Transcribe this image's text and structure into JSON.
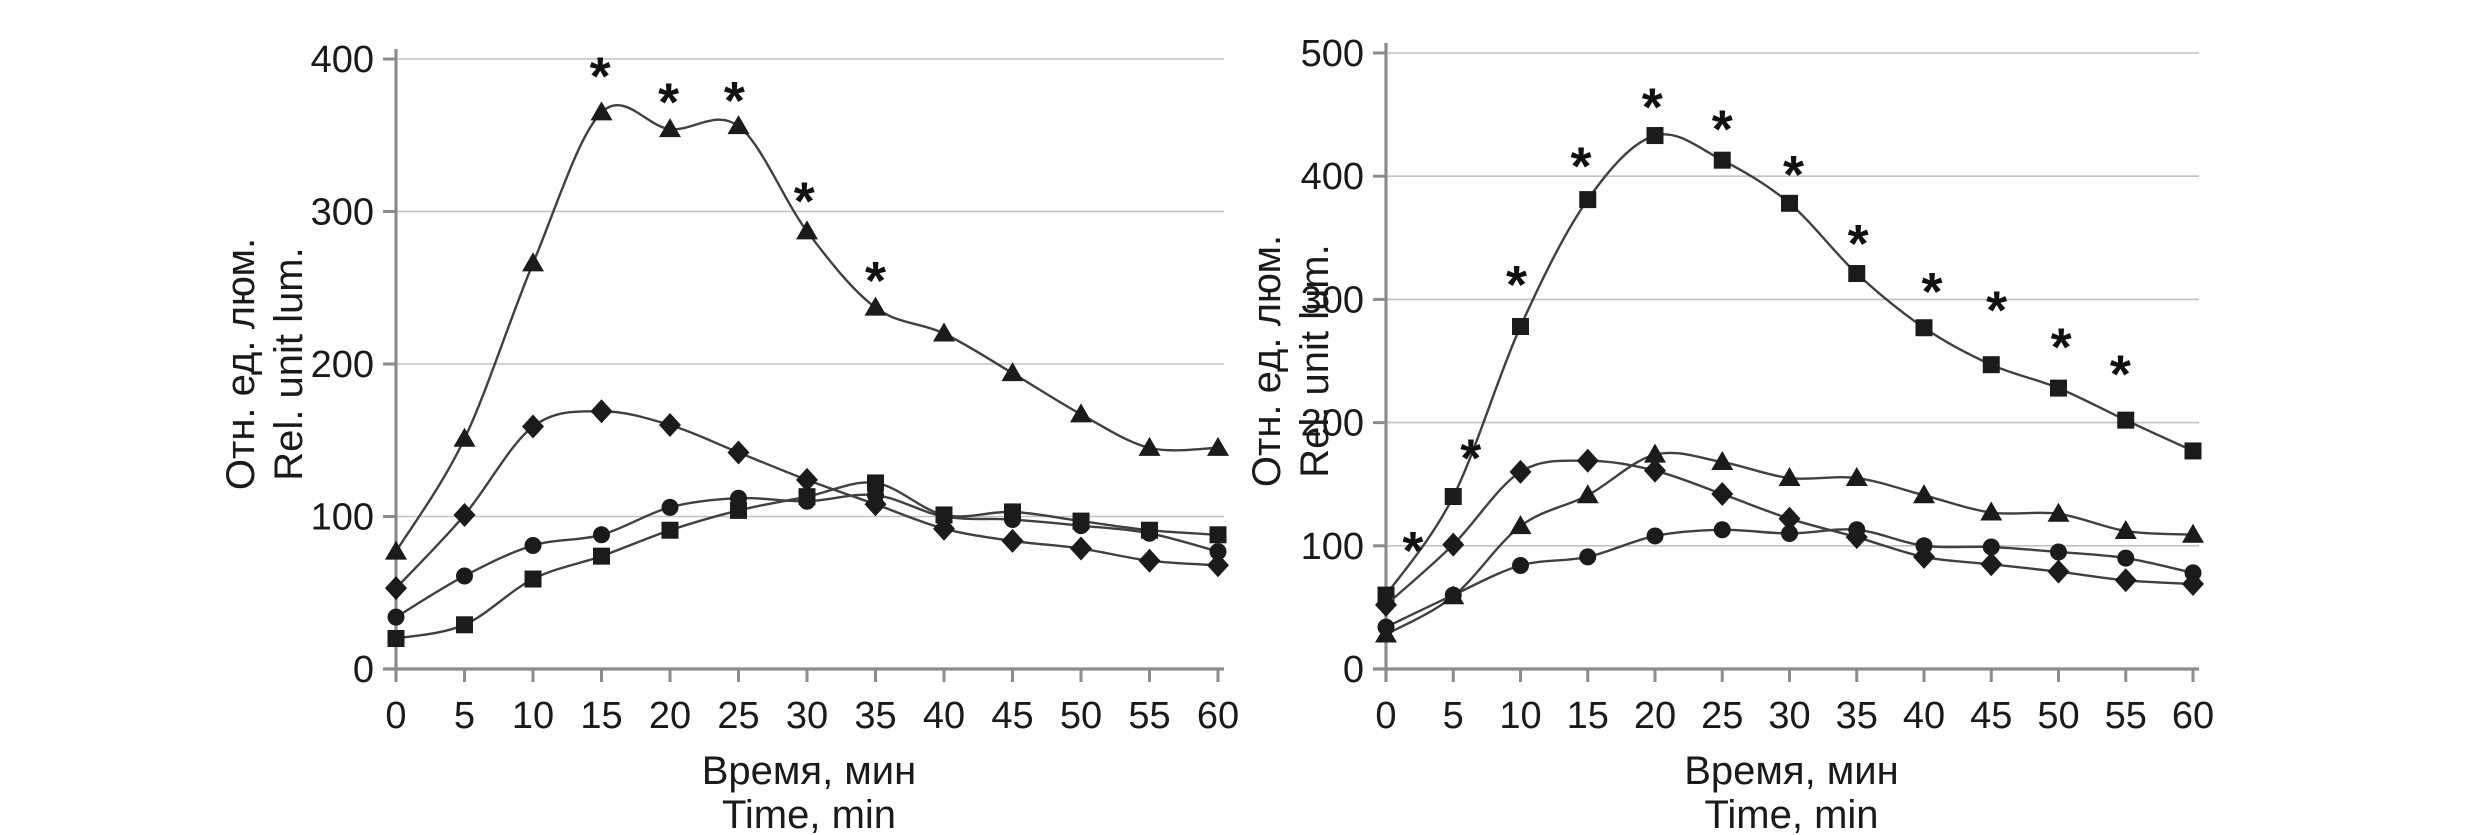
{
  "figure": {
    "background": "#ffffff",
    "text_color": "#1a1a1a",
    "line_color": "#404040",
    "marker_color": "#1b1b1b",
    "grid_color": "#c2c2c2",
    "axis_color": "#8c8c8c",
    "significance_symbol": "*"
  },
  "chart_data": [
    {
      "type": "line",
      "title": "",
      "ylabel_line1": "Отн. ед. люм.",
      "ylabel_line2": "Rel. unit lum.",
      "xlabel_line1": "Время, мин",
      "xlabel_line2": "Time, min",
      "x": [
        0,
        5,
        10,
        15,
        20,
        25,
        30,
        35,
        40,
        45,
        50,
        55,
        60
      ],
      "xlim": [
        0,
        60
      ],
      "ylim": [
        0,
        400
      ],
      "xticks": [
        0,
        5,
        10,
        15,
        20,
        25,
        30,
        35,
        40,
        45,
        50,
        55,
        60
      ],
      "yticks": [
        0,
        100,
        200,
        300,
        400
      ],
      "grid": "horizontal",
      "legend": "none",
      "series": [
        {
          "name": "triangle-series",
          "marker": "triangle",
          "values": [
            77,
            151,
            266,
            365,
            354,
            356,
            287,
            237,
            220,
            194,
            167,
            145,
            145
          ]
        },
        {
          "name": "diamond-series",
          "marker": "diamond",
          "values": [
            53,
            101,
            159,
            169,
            160,
            142,
            124,
            108,
            92,
            84,
            79,
            71,
            68
          ]
        },
        {
          "name": "circle-series",
          "marker": "circle",
          "values": [
            34,
            61,
            81,
            88,
            106,
            112,
            110,
            114,
            100,
            98,
            94,
            89,
            77
          ]
        },
        {
          "name": "square-series",
          "marker": "square",
          "values": [
            20,
            29,
            59,
            74,
            91,
            104,
            113,
            122,
            101,
            103,
            97,
            91,
            88
          ]
        }
      ],
      "significance_marks": [
        [
          14.9,
          395
        ],
        [
          19.9,
          378
        ],
        [
          24.7,
          379
        ],
        [
          29.8,
          313
        ],
        [
          35.0,
          261
        ]
      ]
    },
    {
      "type": "line",
      "title": "",
      "ylabel_line1": "Отн. ед. люм.",
      "ylabel_line2": "Rel. unit lum.",
      "xlabel_line1": "Время, мин",
      "xlabel_line2": "Time, min",
      "x": [
        0,
        5,
        10,
        15,
        20,
        25,
        30,
        35,
        40,
        45,
        50,
        55,
        60
      ],
      "xlim": [
        0,
        60
      ],
      "ylim": [
        0,
        500
      ],
      "xticks": [
        0,
        5,
        10,
        15,
        20,
        25,
        30,
        35,
        40,
        45,
        50,
        55,
        60
      ],
      "yticks": [
        0,
        100,
        200,
        300,
        400,
        500
      ],
      "grid": "horizontal",
      "legend": "none",
      "series": [
        {
          "name": "square-series",
          "marker": "square",
          "values": [
            60,
            140,
            278,
            381,
            433,
            413,
            378,
            321,
            277,
            247,
            228,
            202,
            177
          ]
        },
        {
          "name": "diamond-series",
          "marker": "diamond",
          "values": [
            52,
            101,
            160,
            169,
            161,
            142,
            122,
            107,
            91,
            85,
            79,
            72,
            69
          ]
        },
        {
          "name": "triangle-series",
          "marker": "triangle",
          "values": [
            28,
            59,
            116,
            141,
            174,
            168,
            155,
            155,
            141,
            127,
            126,
            112,
            109
          ]
        },
        {
          "name": "circle-series",
          "marker": "circle",
          "values": [
            34,
            60,
            84,
            91,
            108,
            113,
            110,
            113,
            100,
            99,
            95,
            90,
            78
          ]
        }
      ],
      "significance_marks": [
        [
          2.0,
          104
        ],
        [
          6.3,
          179
        ],
        [
          9.7,
          320
        ],
        [
          14.5,
          416
        ],
        [
          19.8,
          464
        ],
        [
          25.0,
          446
        ],
        [
          30.3,
          409
        ],
        [
          35.1,
          353
        ],
        [
          40.6,
          314
        ],
        [
          45.4,
          299
        ],
        [
          50.2,
          269
        ],
        [
          54.6,
          247
        ]
      ]
    }
  ]
}
